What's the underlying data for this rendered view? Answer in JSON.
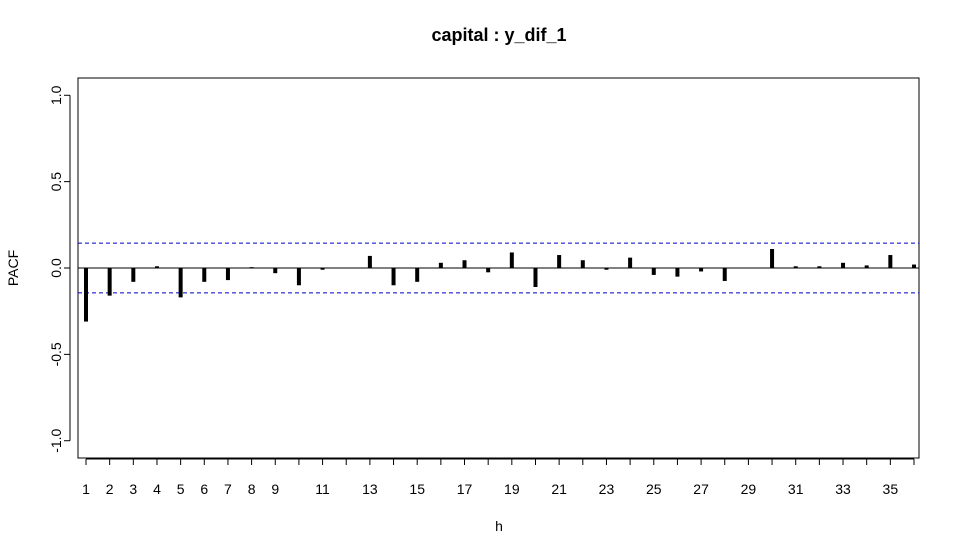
{
  "chart_data": {
    "type": "bar",
    "title": "capital : y_dif_1",
    "xlabel": "h",
    "ylabel": "PACF",
    "ylim": [
      -1.1,
      1.1
    ],
    "yticks": [
      -1.0,
      -0.5,
      0.0,
      0.5,
      1.0
    ],
    "ytick_labels": [
      "-1.0",
      "-0.5",
      "0.0",
      "0.5",
      "1.0"
    ],
    "xlim": [
      1,
      36
    ],
    "xtick_labels": [
      "1",
      "2",
      "3",
      "4",
      "5",
      "6",
      "7",
      "8",
      "9",
      "11",
      "13",
      "15",
      "17",
      "19",
      "21",
      "23",
      "25",
      "27",
      "29",
      "31",
      "33",
      "35"
    ],
    "lags": [
      1,
      2,
      3,
      4,
      5,
      6,
      7,
      8,
      9,
      10,
      11,
      12,
      13,
      14,
      15,
      16,
      17,
      18,
      19,
      20,
      21,
      22,
      23,
      24,
      25,
      26,
      27,
      28,
      29,
      30,
      31,
      32,
      33,
      34,
      35,
      36
    ],
    "values": [
      -0.31,
      -0.16,
      -0.08,
      0.01,
      -0.17,
      -0.08,
      -0.07,
      0.005,
      -0.03,
      -0.1,
      -0.01,
      0.0,
      0.07,
      -0.1,
      -0.08,
      0.03,
      0.045,
      -0.025,
      0.09,
      -0.11,
      0.075,
      0.045,
      -0.01,
      0.06,
      -0.04,
      -0.05,
      -0.02,
      -0.075,
      0.0,
      0.11,
      0.01,
      0.01,
      0.03,
      0.015,
      0.075,
      0.02
    ],
    "confidence_band": [
      0.144,
      -0.144
    ],
    "confidence_color": "#0000CC",
    "bar_color": "#000000"
  }
}
